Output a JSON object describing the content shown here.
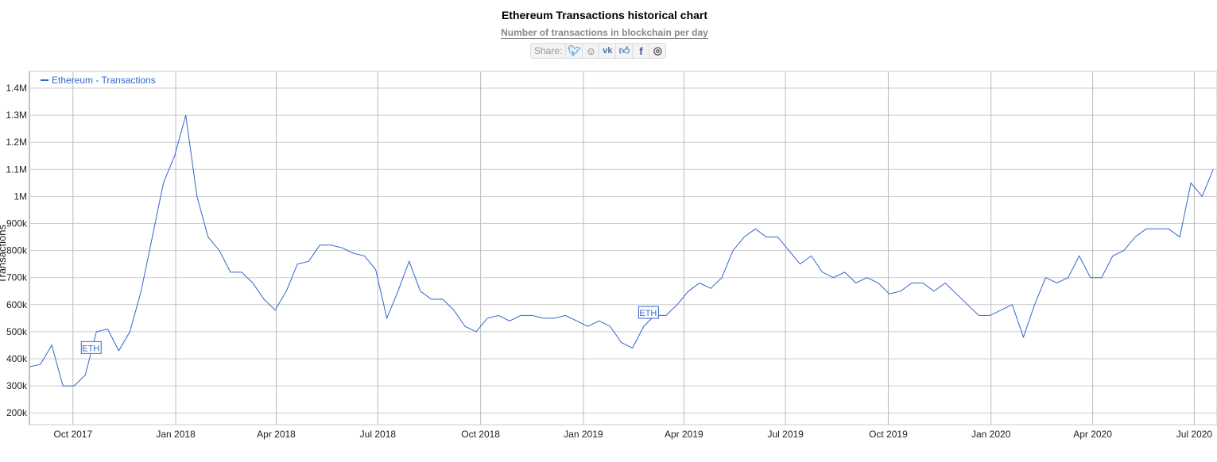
{
  "header": {
    "title": "Ethereum Transactions historical chart",
    "subtitle": "Number of transactions in blockchain per day",
    "share": {
      "label": "Share:",
      "icons": [
        "twitter-icon",
        "reddit-icon",
        "vk-icon",
        "like-icon",
        "facebook-icon",
        "weibo-icon"
      ]
    }
  },
  "chart_data": {
    "type": "line",
    "title": "Ethereum Transactions historical chart",
    "subtitle": "Number of transactions in blockchain per day",
    "ylabel": "Transactions",
    "ylim": [
      160000,
      1460000
    ],
    "xlim": [
      "2017-08-23",
      "2020-07-20"
    ],
    "grid": true,
    "legend_placement": "top-left",
    "yticks": [
      "200k",
      "300k",
      "400k",
      "500k",
      "600k",
      "700k",
      "800k",
      "900k",
      "1M",
      "1.1M",
      "1.2M",
      "1.3M",
      "1.4M"
    ],
    "ytick_values": [
      200000,
      300000,
      400000,
      500000,
      600000,
      700000,
      800000,
      900000,
      1000000,
      1100000,
      1200000,
      1300000,
      1400000
    ],
    "xticks": [
      {
        "label": "Oct 2017",
        "date": "2017-10-01"
      },
      {
        "label": "Jan 2018",
        "date": "2018-01-01"
      },
      {
        "label": "Apr 2018",
        "date": "2018-04-01"
      },
      {
        "label": "Jul 2018",
        "date": "2018-07-01"
      },
      {
        "label": "Oct 2018",
        "date": "2018-10-01"
      },
      {
        "label": "Jan 2019",
        "date": "2019-01-01"
      },
      {
        "label": "Apr 2019",
        "date": "2019-04-01"
      },
      {
        "label": "Jul 2019",
        "date": "2019-07-01"
      },
      {
        "label": "Oct 2019",
        "date": "2019-10-01"
      },
      {
        "label": "Jan 2020",
        "date": "2020-01-01"
      },
      {
        "label": "Apr 2020",
        "date": "2020-04-01"
      },
      {
        "label": "Jul 2020",
        "date": "2020-07-01"
      }
    ],
    "annotations": [
      {
        "date": "2017-10-17",
        "value": 440000,
        "label": "ETH"
      },
      {
        "date": "2019-02-28",
        "value": 570000,
        "label": "ETH"
      }
    ],
    "series": [
      {
        "name": "Ethereum - Transactions",
        "color": "#3366cc",
        "x": [
          "2017-08-23",
          "2017-09-02",
          "2017-09-12",
          "2017-09-22",
          "2017-10-02",
          "2017-10-12",
          "2017-10-22",
          "2017-11-01",
          "2017-11-11",
          "2017-11-21",
          "2017-12-01",
          "2017-12-11",
          "2017-12-21",
          "2017-12-31",
          "2018-01-10",
          "2018-01-20",
          "2018-01-30",
          "2018-02-09",
          "2018-02-19",
          "2018-03-01",
          "2018-03-11",
          "2018-03-21",
          "2018-03-31",
          "2018-04-10",
          "2018-04-20",
          "2018-04-30",
          "2018-05-10",
          "2018-05-20",
          "2018-05-30",
          "2018-06-09",
          "2018-06-19",
          "2018-06-29",
          "2018-07-09",
          "2018-07-19",
          "2018-07-29",
          "2018-08-08",
          "2018-08-18",
          "2018-08-28",
          "2018-09-07",
          "2018-09-17",
          "2018-09-27",
          "2018-10-07",
          "2018-10-17",
          "2018-10-27",
          "2018-11-06",
          "2018-11-16",
          "2018-11-26",
          "2018-12-06",
          "2018-12-16",
          "2018-12-26",
          "2019-01-05",
          "2019-01-15",
          "2019-01-25",
          "2019-02-04",
          "2019-02-14",
          "2019-02-24",
          "2019-03-06",
          "2019-03-16",
          "2019-03-26",
          "2019-04-05",
          "2019-04-15",
          "2019-04-25",
          "2019-05-05",
          "2019-05-15",
          "2019-05-25",
          "2019-06-04",
          "2019-06-14",
          "2019-06-24",
          "2019-07-04",
          "2019-07-14",
          "2019-07-24",
          "2019-08-03",
          "2019-08-13",
          "2019-08-23",
          "2019-09-02",
          "2019-09-12",
          "2019-09-22",
          "2019-10-02",
          "2019-10-12",
          "2019-10-22",
          "2019-11-01",
          "2019-11-11",
          "2019-11-21",
          "2019-12-01",
          "2019-12-11",
          "2019-12-21",
          "2019-12-31",
          "2020-01-10",
          "2020-01-20",
          "2020-01-30",
          "2020-02-09",
          "2020-02-19",
          "2020-02-29",
          "2020-03-10",
          "2020-03-20",
          "2020-03-30",
          "2020-04-09",
          "2020-04-19",
          "2020-04-29",
          "2020-05-09",
          "2020-05-19",
          "2020-05-29",
          "2020-06-08",
          "2020-06-18",
          "2020-06-28",
          "2020-07-08",
          "2020-07-18"
        ],
        "values": [
          370000,
          380000,
          450000,
          300000,
          300000,
          340000,
          500000,
          510000,
          430000,
          500000,
          650000,
          850000,
          1050000,
          1150000,
          1300000,
          1000000,
          850000,
          800000,
          720000,
          720000,
          680000,
          620000,
          580000,
          650000,
          750000,
          760000,
          820000,
          820000,
          810000,
          790000,
          780000,
          730000,
          550000,
          650000,
          760000,
          650000,
          620000,
          620000,
          580000,
          520000,
          500000,
          550000,
          560000,
          540000,
          560000,
          560000,
          550000,
          550000,
          560000,
          540000,
          520000,
          540000,
          520000,
          460000,
          440000,
          520000,
          560000,
          560000,
          600000,
          650000,
          680000,
          660000,
          700000,
          800000,
          850000,
          880000,
          850000,
          850000,
          800000,
          750000,
          780000,
          720000,
          700000,
          720000,
          680000,
          700000,
          680000,
          640000,
          650000,
          680000,
          680000,
          650000,
          680000,
          640000,
          600000,
          560000,
          560000,
          580000,
          600000,
          480000,
          600000,
          700000,
          680000,
          700000,
          780000,
          700000,
          700000,
          780000,
          800000,
          850000,
          880000,
          880000,
          880000,
          850000,
          1050000,
          1000000,
          1100000
        ]
      }
    ]
  }
}
